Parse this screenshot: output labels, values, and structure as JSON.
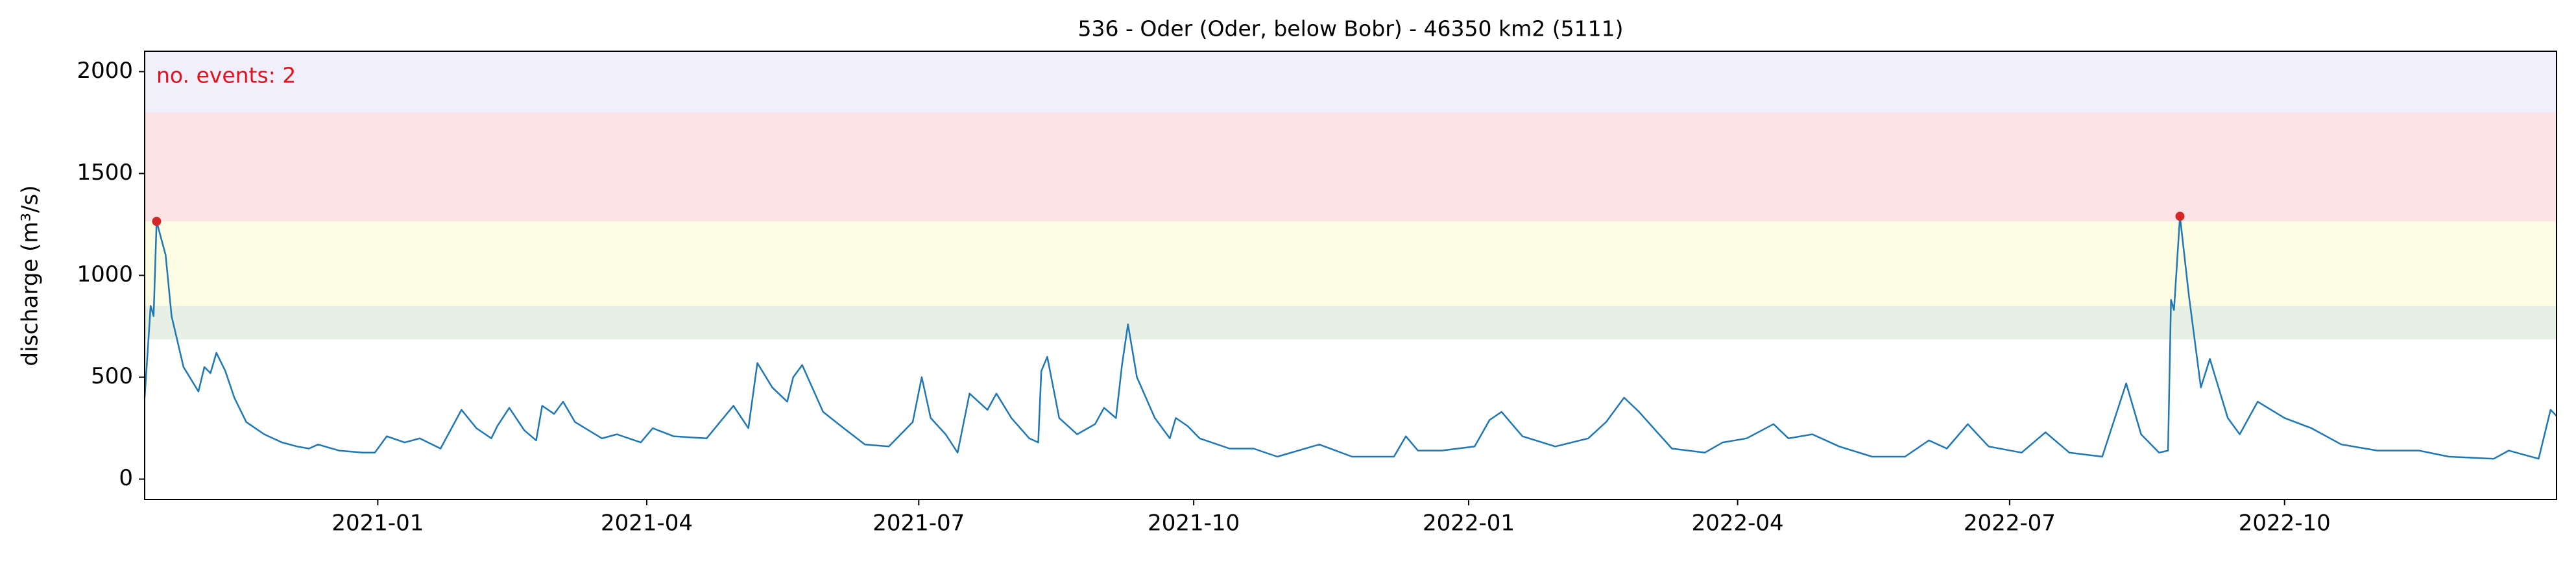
{
  "chart_data": {
    "type": "line",
    "title": "536 - Oder (Oder, below Bobr) - 46350 km2 (5111)",
    "y_label": "discharge (m³/s)",
    "annotation": "no. events: 2",
    "annotation_color": "#e8101a",
    "xlim": [
      "2020-10-15",
      "2022-12-31"
    ],
    "xticks": [
      "2021-01",
      "2021-04",
      "2021-07",
      "2021-10",
      "2022-01",
      "2022-04",
      "2022-07",
      "2022-10"
    ],
    "ylim": [
      -100,
      2100
    ],
    "yticks": [
      0,
      500,
      1000,
      1500,
      2000
    ],
    "bands": [
      {
        "lower": 685,
        "upper": 850,
        "color": "#e6f0e4"
      },
      {
        "lower": 850,
        "upper": 1265,
        "color": "#fdfde4"
      },
      {
        "lower": 1265,
        "upper": 1800,
        "color": "#fde3e6"
      },
      {
        "lower": 1800,
        "upper": 2100,
        "color": "#f1effb"
      }
    ],
    "events": {
      "color": "#d62728",
      "x": [
        "2020-10-19",
        "2022-08-27"
      ],
      "values": [
        1265,
        1290
      ]
    },
    "series": [
      {
        "color": "#1f77b4",
        "x": [
          "2020-10-15",
          "2020-10-17",
          "2020-10-18",
          "2020-10-19",
          "2020-10-22",
          "2020-10-24",
          "2020-10-28",
          "2020-11-02",
          "2020-11-04",
          "2020-11-06",
          "2020-11-08",
          "2020-11-11",
          "2020-11-14",
          "2020-11-18",
          "2020-11-24",
          "2020-11-30",
          "2020-12-05",
          "2020-12-09",
          "2020-12-12",
          "2020-12-19",
          "2020-12-27",
          "2020-12-31",
          "2021-01-04",
          "2021-01-10",
          "2021-01-15",
          "2021-01-22",
          "2021-01-29",
          "2021-02-03",
          "2021-02-08",
          "2021-02-10",
          "2021-02-14",
          "2021-02-19",
          "2021-02-23",
          "2021-02-25",
          "2021-03-01",
          "2021-03-04",
          "2021-03-08",
          "2021-03-17",
          "2021-03-22",
          "2021-03-30",
          "2021-04-03",
          "2021-04-10",
          "2021-04-21",
          "2021-04-30",
          "2021-05-05",
          "2021-05-08",
          "2021-05-13",
          "2021-05-18",
          "2021-05-20",
          "2021-05-23",
          "2021-05-30",
          "2021-06-05",
          "2021-06-13",
          "2021-06-21",
          "2021-06-29",
          "2021-07-02",
          "2021-07-05",
          "2021-07-10",
          "2021-07-14",
          "2021-07-18",
          "2021-07-24",
          "2021-07-27",
          "2021-08-01",
          "2021-08-07",
          "2021-08-10",
          "2021-08-11",
          "2021-08-13",
          "2021-08-17",
          "2021-08-23",
          "2021-08-29",
          "2021-09-01",
          "2021-09-05",
          "2021-09-07",
          "2021-09-09",
          "2021-09-12",
          "2021-09-18",
          "2021-09-23",
          "2021-09-25",
          "2021-09-29",
          "2021-10-03",
          "2021-10-13",
          "2021-10-21",
          "2021-10-29",
          "2021-11-12",
          "2021-11-23",
          "2021-12-07",
          "2021-12-11",
          "2021-12-15",
          "2021-12-23",
          "2022-01-03",
          "2022-01-08",
          "2022-01-12",
          "2022-01-19",
          "2022-01-30",
          "2022-02-10",
          "2022-02-16",
          "2022-02-22",
          "2022-02-27",
          "2022-03-10",
          "2022-03-21",
          "2022-03-27",
          "2022-04-04",
          "2022-04-13",
          "2022-04-18",
          "2022-04-26",
          "2022-05-05",
          "2022-05-16",
          "2022-05-27",
          "2022-06-04",
          "2022-06-10",
          "2022-06-17",
          "2022-06-24",
          "2022-07-05",
          "2022-07-13",
          "2022-07-21",
          "2022-08-01",
          "2022-08-09",
          "2022-08-14",
          "2022-08-20",
          "2022-08-23",
          "2022-08-24",
          "2022-08-25",
          "2022-08-27",
          "2022-08-30",
          "2022-09-03",
          "2022-09-06",
          "2022-09-12",
          "2022-09-16",
          "2022-09-22",
          "2022-10-01",
          "2022-10-10",
          "2022-10-20",
          "2022-11-01",
          "2022-11-15",
          "2022-11-25",
          "2022-12-10",
          "2022-12-15",
          "2022-12-25",
          "2022-12-29",
          "2022-12-31"
        ],
        "values": [
          400,
          850,
          800,
          1265,
          1100,
          800,
          550,
          430,
          550,
          520,
          620,
          530,
          400,
          280,
          220,
          180,
          160,
          150,
          170,
          140,
          130,
          130,
          210,
          180,
          200,
          150,
          340,
          250,
          200,
          260,
          350,
          240,
          190,
          360,
          320,
          380,
          280,
          200,
          220,
          180,
          250,
          210,
          200,
          360,
          250,
          570,
          450,
          380,
          500,
          560,
          330,
          260,
          170,
          160,
          280,
          500,
          300,
          220,
          130,
          420,
          340,
          420,
          300,
          200,
          180,
          530,
          600,
          300,
          220,
          270,
          350,
          300,
          560,
          760,
          500,
          300,
          200,
          300,
          260,
          200,
          150,
          150,
          110,
          170,
          110,
          110,
          210,
          140,
          140,
          160,
          290,
          330,
          210,
          160,
          200,
          280,
          400,
          330,
          150,
          130,
          180,
          200,
          270,
          200,
          220,
          160,
          110,
          110,
          190,
          150,
          270,
          160,
          130,
          230,
          130,
          110,
          470,
          220,
          130,
          140,
          880,
          830,
          1290,
          900,
          450,
          590,
          300,
          220,
          380,
          300,
          250,
          170,
          140,
          140,
          110,
          100,
          140,
          100,
          340,
          310
        ]
      }
    ]
  }
}
